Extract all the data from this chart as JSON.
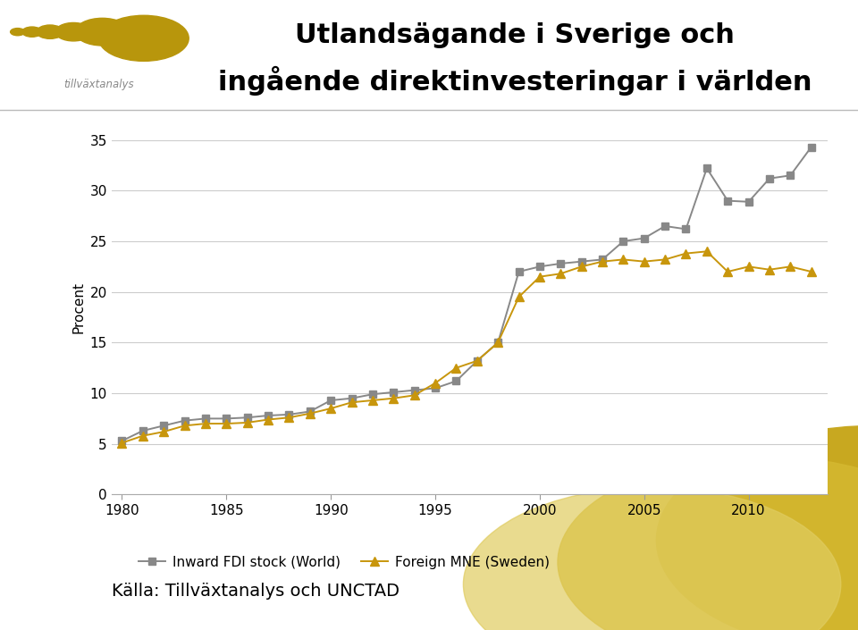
{
  "title_line1": "Utlandsägande i Sverige och",
  "title_line2": "ingående direktinvesteringar i världen",
  "ylabel": "Procent",
  "source_text": "Källa: Tillväxtanalys och UNCTAD",
  "legend_fdi": "Inward FDI stock (World)",
  "legend_mne": "Foreign MNE (Sweden)",
  "ylim": [
    0,
    37
  ],
  "yticks": [
    0,
    5,
    10,
    15,
    20,
    25,
    30,
    35
  ],
  "background_color": "#ffffff",
  "fdi_color": "#888888",
  "mne_color": "#C8960C",
  "years_fdi": [
    1980,
    1981,
    1982,
    1983,
    1984,
    1985,
    1986,
    1987,
    1988,
    1989,
    1990,
    1991,
    1992,
    1993,
    1994,
    1995,
    1996,
    1997,
    1998,
    1999,
    2000,
    2001,
    2002,
    2003,
    2004,
    2005,
    2006,
    2007,
    2008,
    2009,
    2010,
    2011,
    2012,
    2013
  ],
  "values_fdi": [
    5.3,
    6.3,
    6.8,
    7.3,
    7.5,
    7.5,
    7.6,
    7.8,
    7.9,
    8.2,
    9.3,
    9.5,
    9.9,
    10.1,
    10.3,
    10.5,
    11.2,
    13.2,
    15.0,
    22.0,
    22.5,
    22.8,
    23.0,
    23.2,
    25.0,
    25.3,
    26.5,
    26.2,
    32.2,
    29.0,
    28.9,
    31.2,
    31.5,
    34.3
  ],
  "years_mne": [
    1980,
    1981,
    1982,
    1983,
    1984,
    1985,
    1986,
    1987,
    1988,
    1989,
    1990,
    1991,
    1992,
    1993,
    1994,
    1995,
    1996,
    1997,
    1998,
    1999,
    2000,
    2001,
    2002,
    2003,
    2004,
    2005,
    2006,
    2007,
    2008,
    2009,
    2010,
    2011,
    2012,
    2013
  ],
  "values_mne": [
    5.1,
    5.8,
    6.2,
    6.8,
    7.0,
    7.0,
    7.1,
    7.4,
    7.6,
    8.0,
    8.5,
    9.1,
    9.3,
    9.5,
    9.8,
    11.0,
    12.5,
    13.2,
    15.0,
    19.5,
    21.5,
    21.8,
    22.5,
    23.0,
    23.2,
    23.0,
    23.2,
    23.8,
    24.0,
    22.0,
    22.5,
    22.2,
    22.5,
    22.0
  ],
  "title_fontsize": 22,
  "axis_fontsize": 11,
  "tick_fontsize": 11,
  "source_fontsize": 14,
  "legend_fontsize": 11,
  "logo_gold1": "#B8960C",
  "logo_gold2": "#C8A820",
  "logo_gold3": "#D4B830",
  "logo_text_color": "#888888",
  "deco_gold1": "#C8A820",
  "deco_gold2": "#D4B830",
  "deco_gold3": "#E0CC60"
}
